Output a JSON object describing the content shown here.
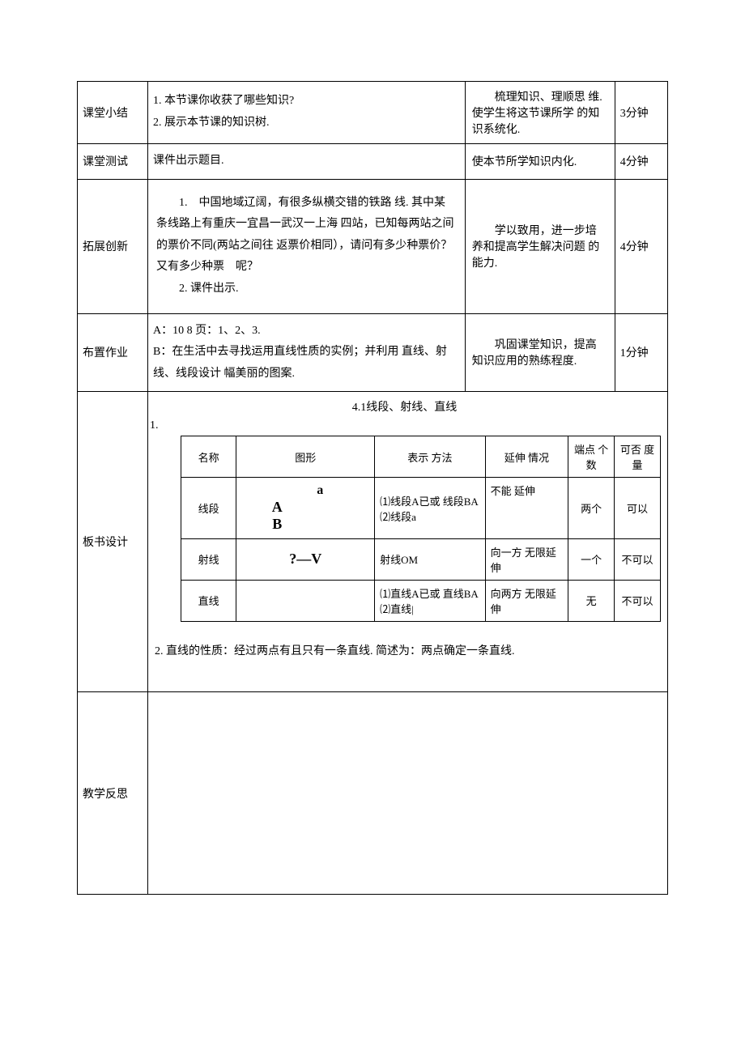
{
  "rows": {
    "summary": {
      "label": "课堂小结",
      "content_l1": "1. 本节课你收获了哪些知识?",
      "content_l2": "2. 展示本节课的知识树.",
      "purpose": "梳理知识、理顺思 维. 使学生将这节课所学 的知识系统化.",
      "time": "3分钟"
    },
    "test": {
      "label": "课堂测试",
      "content": "课件出示题目.",
      "purpose": "使本节所学知识内化.",
      "time": "4分钟"
    },
    "extend": {
      "label": "拓展创新",
      "content_l1": "1.　中国地域辽阔，有很多纵横交错的铁路 线. 其中某条线路上有重庆一宜昌一武汉一上海 四站，已知每两站之间的票价不同(两站之间往 返票价相同），请问有多少种票价？又有多少种票　呢？",
      "content_l2": "2. 课件出示.",
      "purpose": "学以致用，进一步培 养和提高学生解决问题 的能力.",
      "time": "4分钟"
    },
    "homework": {
      "label": "布置作业",
      "content_l1": "A：10 8 页：1、2、3.",
      "content_l2": "B：在生活中去寻找运用直线性质的实例；并利用 直线、射线、线段设计 幅美丽的图案.",
      "purpose": "巩固课堂知识，提高 知识应用的熟练程度.",
      "time": "1分钟"
    },
    "board": {
      "label": "板书设计",
      "title": "4.1线段、射线、直线",
      "num1": "1.",
      "headers": {
        "name": "名称",
        "figure": "图形",
        "repr": "表示  方法",
        "extend": "延伸  情况",
        "endpoints": "端点 个数",
        "measurable": "可否 度量"
      },
      "r1": {
        "name": "线段",
        "fig_a": "a",
        "fig_ab": "A B",
        "repr": "⑴线段A已或 线段BA ⑵线段a",
        "extend": "不能  延伸",
        "endpoints": "两个",
        "measurable": "可以"
      },
      "r2": {
        "name": "射线",
        "fig": "?—V",
        "repr": "射线OM",
        "extend": "向一方 无限延伸",
        "endpoints": "一个",
        "measurable": "不可以"
      },
      "r3": {
        "name": "直线",
        "fig": "",
        "repr": "⑴直线A已或 直线BA ⑵直线|",
        "extend": "向两方 无限延伸",
        "endpoints": "无",
        "measurable": "不可以"
      },
      "note": "2. 直线的性质：经过两点有且只有一条直线.  简述为：两点确定一条直线."
    },
    "reflect": {
      "label": "教学反思"
    }
  }
}
